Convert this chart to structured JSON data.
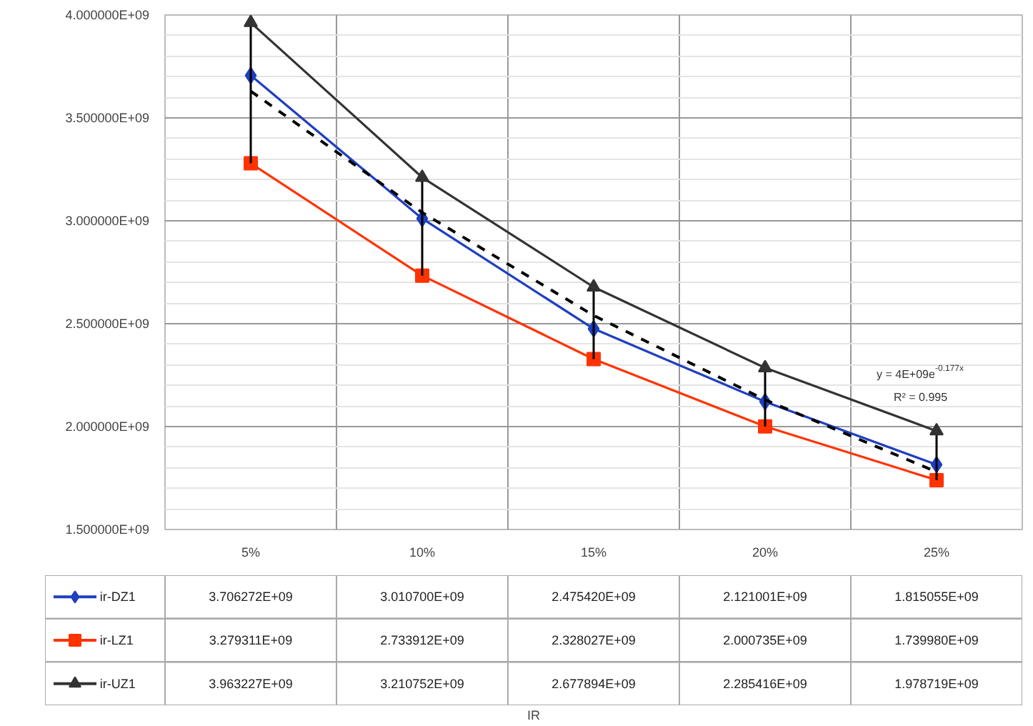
{
  "chart_data": {
    "type": "line",
    "categories": [
      "5%",
      "10%",
      "15%",
      "20%",
      "25%"
    ],
    "ylim": [
      1500000000,
      4000000000
    ],
    "yticks": [
      {
        "value": 1500000000,
        "label": "1.500000E+09"
      },
      {
        "value": 2000000000,
        "label": "2.000000E+09"
      },
      {
        "value": 2500000000,
        "label": "2.500000E+09"
      },
      {
        "value": 3000000000,
        "label": "3.000000E+09"
      },
      {
        "value": 3500000000,
        "label": "3.500000E+09"
      },
      {
        "value": 4000000000,
        "label": "4.000000E+09"
      }
    ],
    "grid": true,
    "legend": "bottom",
    "line_style": "solid",
    "series": [
      {
        "name": "ir-DZ1",
        "color": "#1f3fbf",
        "marker": "diamond",
        "values": [
          3706272000,
          3010700000,
          2475420000,
          2121001000,
          1815055000
        ],
        "value_labels": [
          "3.706272E+09",
          "3.010700E+09",
          "2.475420E+09",
          "2.121001E+09",
          "1.815055E+09"
        ]
      },
      {
        "name": "ir-LZ1",
        "color": "#ff3300",
        "marker": "square",
        "values": [
          3279311000,
          2733912000,
          2328027000,
          2000735000,
          1739980000
        ],
        "value_labels": [
          "3.279311E+09",
          "2.733912E+09",
          "2.328027E+09",
          "2.000735E+09",
          "1.739980E+09"
        ]
      },
      {
        "name": "ir-UZ1",
        "color": "#333333",
        "marker": "triangle",
        "values": [
          3963227000,
          3210752000,
          2677894000,
          2285416000,
          1978719000
        ],
        "value_labels": [
          "3.963227E+09",
          "3.210752E+09",
          "2.677894E+09",
          "2.285416E+09",
          "1.978719E+09"
        ],
        "errors": [
          [
            3279311000,
            3963227000
          ],
          [
            2733912000,
            3210752000
          ],
          [
            2328027000,
            2677894000
          ],
          [
            2000735000,
            2285416000
          ],
          [
            1739980000,
            1978719000
          ]
        ]
      },
      {
        "type": "line",
        "color": "#000000",
        "line_style": "dashed",
        "marker": "none",
        "values": [
          3630000000,
          3040000000,
          2540000000,
          2130000000,
          1780000000
        ]
      }
    ],
    "annotations": [
      "y = 4E+09e$^{-0.177x}$",
      "R² = 0.995",
      "IR"
    ]
  }
}
